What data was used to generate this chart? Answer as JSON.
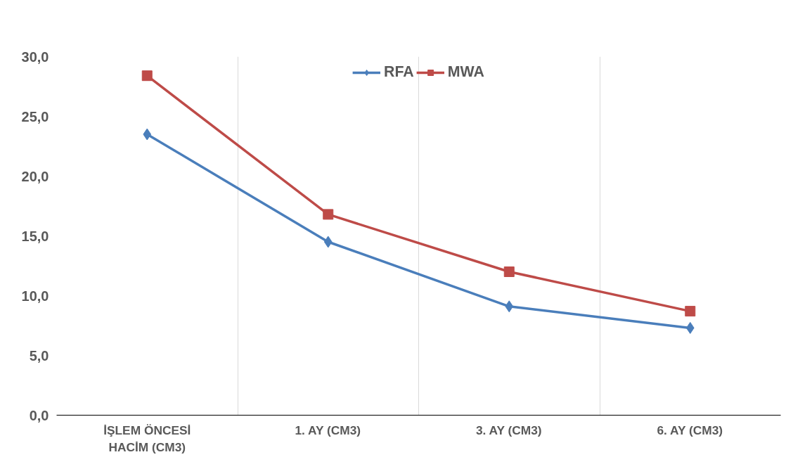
{
  "chart_data": {
    "type": "line",
    "categories": [
      "İŞLEM ÖNCESİ\nHACİM (CM3)",
      "1. AY (CM3)",
      "3. AY (CM3)",
      "6. AY (CM3)"
    ],
    "series": [
      {
        "name": "RFA",
        "color": "#4a7ebb",
        "values": [
          23.5,
          14.5,
          9.1,
          7.3
        ],
        "marker": "diamond"
      },
      {
        "name": "MWA",
        "color": "#be4b48",
        "values": [
          28.4,
          16.8,
          12.0,
          8.7
        ],
        "marker": "square"
      }
    ],
    "ylim": [
      0,
      30
    ],
    "yticks": [
      {
        "value": 0,
        "label": "0,0"
      },
      {
        "value": 5,
        "label": "5,0"
      },
      {
        "value": 10,
        "label": "10,0"
      },
      {
        "value": 15,
        "label": "15,0"
      },
      {
        "value": 20,
        "label": "20,0"
      },
      {
        "value": 25,
        "label": "25,0"
      },
      {
        "value": 30,
        "label": "30,0"
      }
    ],
    "grid": "x",
    "legend": "top",
    "line_style": "solid"
  }
}
